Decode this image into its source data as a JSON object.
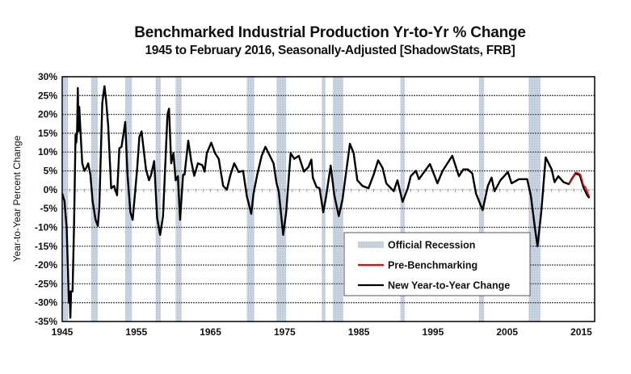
{
  "chart_data": {
    "type": "line",
    "title": "Benchmarked Industrial Production Yr-to-Yr % Change",
    "subtitle": "1945 to February 2016, Seasonally-Adjusted [ShadowStats, FRB]",
    "xlabel": "",
    "ylabel": "Year-to-Year Percent Change",
    "xlim": [
      1945,
      2016.8
    ],
    "ylim": [
      -35,
      30
    ],
    "x_ticks": [
      1945,
      1955,
      1965,
      1975,
      1985,
      1995,
      2005,
      2015
    ],
    "x_tick_labels": [
      "1945",
      "1955",
      "1965",
      "1975",
      "1985",
      "1995",
      "2005",
      "2015"
    ],
    "y_ticks": [
      30,
      25,
      20,
      15,
      10,
      5,
      0,
      -5,
      -10,
      -15,
      -20,
      -25,
      -30,
      -35
    ],
    "y_tick_labels": [
      "30%",
      "25%",
      "20%",
      "15%",
      "10%",
      "5%",
      "0%",
      "-5%",
      "-10%",
      "-15%",
      "-20%",
      "-25%",
      "-30%",
      "-35%"
    ],
    "grid": true,
    "legend": {
      "placement": "bottom-center",
      "entries": [
        {
          "label": "Official Recession",
          "kind": "band",
          "color": "#b8cce4"
        },
        {
          "label": "Pre-Benchmarking",
          "kind": "line",
          "color": "#ff0000"
        },
        {
          "label": "New Year-to-Year Change",
          "kind": "line",
          "color": "#000000"
        }
      ]
    },
    "recessions": [
      [
        1945.1,
        1945.8
      ],
      [
        1948.9,
        1949.8
      ],
      [
        1953.5,
        1954.4
      ],
      [
        1957.6,
        1958.3
      ],
      [
        1960.3,
        1961.1
      ],
      [
        1969.9,
        1970.9
      ],
      [
        1973.9,
        1975.2
      ],
      [
        1980.0,
        1980.5
      ],
      [
        1981.5,
        1982.9
      ],
      [
        1990.6,
        1991.2
      ],
      [
        2001.2,
        2001.9
      ],
      [
        2007.9,
        2009.5
      ]
    ],
    "series": [
      {
        "name": "New Year-to-Year Change",
        "color": "#000000",
        "points": [
          [
            1945.0,
            -1
          ],
          [
            1945.3,
            -3
          ],
          [
            1945.6,
            -10
          ],
          [
            1945.9,
            -30
          ],
          [
            1946.0,
            -27
          ],
          [
            1946.1,
            -34
          ],
          [
            1946.2,
            -27
          ],
          [
            1946.4,
            -27
          ],
          [
            1946.6,
            -9
          ],
          [
            1946.8,
            14.6
          ],
          [
            1946.9,
            12.5
          ],
          [
            1947.0,
            15.5
          ],
          [
            1947.1,
            27
          ],
          [
            1947.2,
            15.5
          ],
          [
            1947.3,
            22
          ],
          [
            1947.45,
            16
          ],
          [
            1947.7,
            7
          ],
          [
            1948.0,
            5
          ],
          [
            1948.3,
            6
          ],
          [
            1948.5,
            7
          ],
          [
            1948.8,
            4
          ],
          [
            1949.1,
            -3
          ],
          [
            1949.5,
            -8
          ],
          [
            1949.8,
            -9.6
          ],
          [
            1950.0,
            -4.7
          ],
          [
            1950.4,
            23
          ],
          [
            1950.7,
            27.5
          ],
          [
            1950.9,
            24
          ],
          [
            1951.2,
            17
          ],
          [
            1951.6,
            0.4
          ],
          [
            1952.0,
            1
          ],
          [
            1952.4,
            -1.5
          ],
          [
            1952.7,
            11
          ],
          [
            1953.0,
            11.4
          ],
          [
            1953.2,
            14
          ],
          [
            1953.5,
            18
          ],
          [
            1953.8,
            4
          ],
          [
            1954.2,
            -6
          ],
          [
            1954.5,
            -8
          ],
          [
            1955.1,
            5.4
          ],
          [
            1955.4,
            14
          ],
          [
            1955.7,
            15.5
          ],
          [
            1956.3,
            5.4
          ],
          [
            1956.7,
            2.5
          ],
          [
            1957.0,
            4
          ],
          [
            1957.4,
            7.6
          ],
          [
            1957.8,
            -7.5
          ],
          [
            1958.2,
            -12
          ],
          [
            1958.6,
            -7
          ],
          [
            1959.2,
            20
          ],
          [
            1959.4,
            21.5
          ],
          [
            1959.7,
            7
          ],
          [
            1960.0,
            9.7
          ],
          [
            1960.3,
            2.5
          ],
          [
            1960.6,
            3.6
          ],
          [
            1960.9,
            -8
          ],
          [
            1961.3,
            4
          ],
          [
            1961.5,
            4
          ],
          [
            1962.0,
            13
          ],
          [
            1962.4,
            7.6
          ],
          [
            1962.8,
            3.7
          ],
          [
            1963.3,
            7
          ],
          [
            1963.9,
            6.5
          ],
          [
            1964.2,
            4.8
          ],
          [
            1964.5,
            9.7
          ],
          [
            1965.1,
            12.5
          ],
          [
            1965.6,
            9.7
          ],
          [
            1966.1,
            8.2
          ],
          [
            1966.7,
            1
          ],
          [
            1967.2,
            0
          ],
          [
            1967.7,
            4
          ],
          [
            1968.2,
            7
          ],
          [
            1968.8,
            4.7
          ],
          [
            1969.4,
            5
          ],
          [
            1969.9,
            -1.7
          ],
          [
            1970.5,
            -6.4
          ],
          [
            1970.8,
            -1
          ],
          [
            1971.3,
            4
          ],
          [
            1971.9,
            9
          ],
          [
            1972.4,
            11.4
          ],
          [
            1973.0,
            9
          ],
          [
            1973.5,
            7
          ],
          [
            1973.9,
            1.7
          ],
          [
            1974.2,
            -0.4
          ],
          [
            1974.8,
            -12
          ],
          [
            1975.2,
            -6
          ],
          [
            1975.8,
            9.7
          ],
          [
            1976.3,
            8.2
          ],
          [
            1976.9,
            9
          ],
          [
            1977.6,
            4.8
          ],
          [
            1978.2,
            6
          ],
          [
            1978.6,
            8
          ],
          [
            1978.8,
            3.2
          ],
          [
            1979.3,
            0.7
          ],
          [
            1979.7,
            0.4
          ],
          [
            1980.2,
            -6
          ],
          [
            1980.6,
            -1.7
          ],
          [
            1981.2,
            6.4
          ],
          [
            1981.7,
            -1.5
          ],
          [
            1982.3,
            -7
          ],
          [
            1982.8,
            -2.6
          ],
          [
            1983.8,
            12.2
          ],
          [
            1984.3,
            9.7
          ],
          [
            1984.8,
            2.5
          ],
          [
            1985.5,
            1
          ],
          [
            1986.3,
            0.4
          ],
          [
            1987.0,
            4
          ],
          [
            1987.6,
            7.8
          ],
          [
            1988.2,
            5.8
          ],
          [
            1988.7,
            1.7
          ],
          [
            1989.7,
            -0.4
          ],
          [
            1990.2,
            2.5
          ],
          [
            1990.9,
            -3.2
          ],
          [
            1991.6,
            0.4
          ],
          [
            1992.0,
            3.6
          ],
          [
            1992.7,
            5
          ],
          [
            1993.1,
            2.8
          ],
          [
            1994.6,
            6.8
          ],
          [
            1995.6,
            1.7
          ],
          [
            1996.3,
            5
          ],
          [
            1997.6,
            9
          ],
          [
            1998.5,
            3.6
          ],
          [
            1999.1,
            5.4
          ],
          [
            1999.7,
            5.4
          ],
          [
            2000.3,
            4.3
          ],
          [
            2000.8,
            -1
          ],
          [
            2001.7,
            -5.4
          ],
          [
            2002.4,
            1
          ],
          [
            2002.9,
            3.2
          ],
          [
            2003.3,
            -0.4
          ],
          [
            2004.1,
            2.5
          ],
          [
            2005.1,
            4.7
          ],
          [
            2005.6,
            1.7
          ],
          [
            2006.6,
            2.8
          ],
          [
            2007.7,
            2.8
          ],
          [
            2008.2,
            -1.7
          ],
          [
            2008.8,
            -11
          ],
          [
            2009.1,
            -15
          ],
          [
            2009.6,
            -6
          ],
          [
            2010.2,
            8.6
          ],
          [
            2011.0,
            5.4
          ],
          [
            2011.4,
            2
          ],
          [
            2011.9,
            3.6
          ],
          [
            2012.6,
            2
          ],
          [
            2013.3,
            1.5
          ],
          [
            2014.2,
            4.3
          ],
          [
            2014.8,
            3.9
          ],
          [
            2015.3,
            0.6
          ],
          [
            2015.8,
            -1.5
          ],
          [
            2016.1,
            -2.2
          ]
        ]
      },
      {
        "name": "Pre-Benchmarking",
        "color": "#ff0000",
        "points": [
          [
            2013.3,
            1.6
          ],
          [
            2013.8,
            2.9
          ],
          [
            2014.2,
            4.6
          ],
          [
            2014.6,
            4.4
          ],
          [
            2014.9,
            4.0
          ],
          [
            2015.3,
            1.2
          ],
          [
            2015.6,
            0.6
          ],
          [
            2015.9,
            -1.0
          ],
          [
            2016.1,
            -1.8
          ]
        ]
      }
    ]
  }
}
